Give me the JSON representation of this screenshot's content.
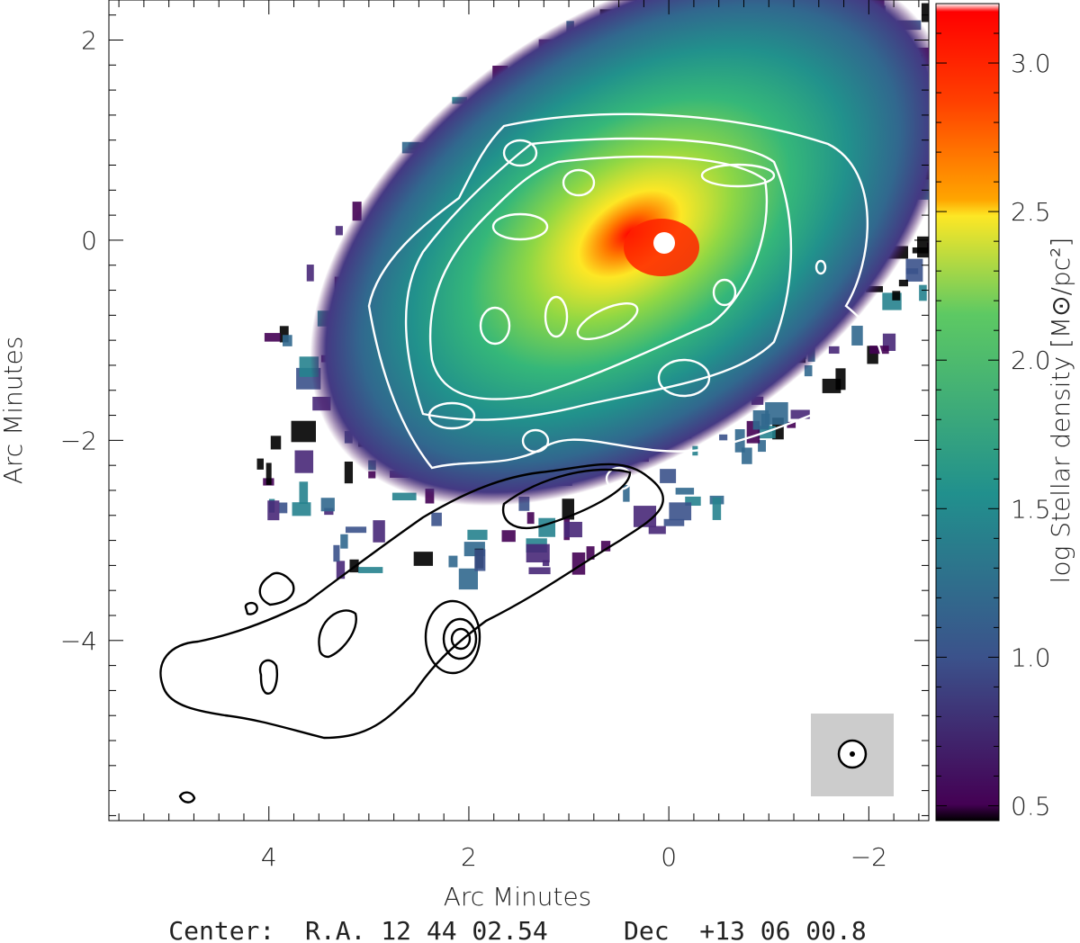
{
  "chart_data": {
    "type": "heatmap",
    "xlabel": "Arc Minutes",
    "ylabel": "Arc Minutes",
    "xlim": [
      5.6,
      -2.6
    ],
    "ylim": [
      -5.8,
      2.4
    ],
    "x_ticks": [
      4,
      2,
      0,
      -2
    ],
    "y_ticks": [
      2,
      0,
      -2,
      -4
    ],
    "x_tick_labels": [
      "4",
      "2",
      "0",
      "−2"
    ],
    "y_tick_labels": [
      "2",
      "0",
      "−2",
      "−4"
    ],
    "colorbar": {
      "label": "log Stellar density [M⊙/pc²]",
      "label_main": "log Stellar density",
      "label_unit": "M⊙/pc²",
      "range": [
        0.45,
        3.2
      ],
      "ticks": [
        0.5,
        1.0,
        1.5,
        2.0,
        2.5,
        3.0
      ],
      "tick_labels": [
        "0.5",
        "1.0",
        "1.5",
        "2.0",
        "2.5",
        "3.0"
      ],
      "colormap": [
        "#000000",
        "#440154",
        "#3b528b",
        "#21908d",
        "#5dc963",
        "#fde725",
        "#ff7f00",
        "#ff0000"
      ]
    },
    "density_peak_position": [
      0.05,
      0.0
    ],
    "contour_peak_position": [
      2.15,
      -3.75
    ],
    "beam_position": [
      -1.85,
      -5.2
    ],
    "center_line": "Center:  R.A. 12 44 02.54     Dec  +13 06 00.8",
    "center": {
      "ra": "12 44 02.54",
      "dec": "+13 06 00.8"
    }
  }
}
